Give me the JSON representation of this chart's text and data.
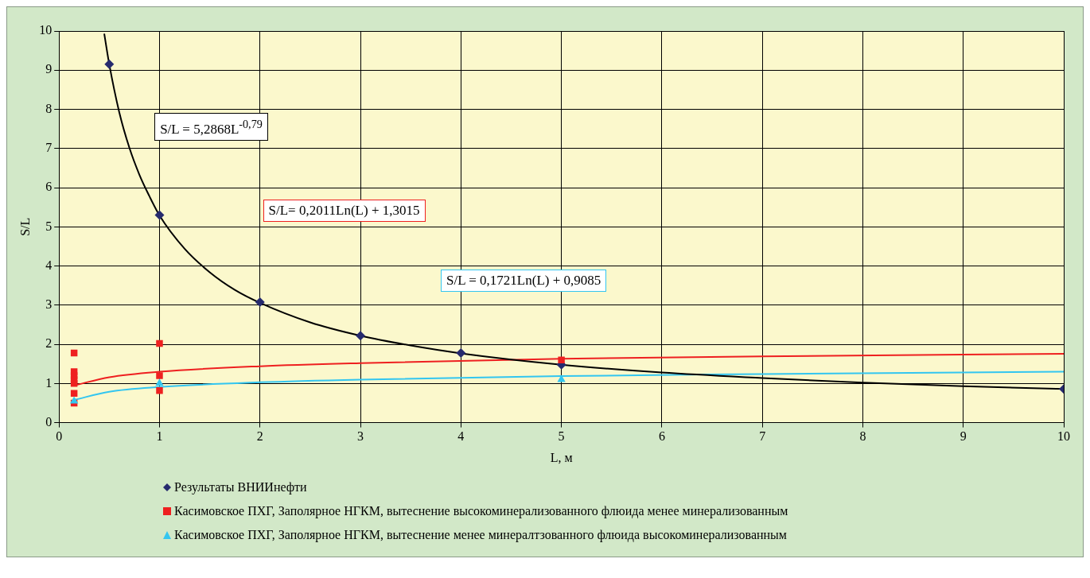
{
  "chart_data": {
    "type": "scatter",
    "xlabel": "L, м",
    "ylabel": "S/L",
    "xlim": [
      0,
      10
    ],
    "ylim": [
      0,
      10
    ],
    "xticks": [
      0,
      1,
      2,
      3,
      4,
      5,
      6,
      7,
      8,
      9,
      10
    ],
    "yticks": [
      0,
      1,
      2,
      3,
      4,
      5,
      6,
      7,
      8,
      9,
      10
    ],
    "grid": true,
    "legend": "bottom",
    "series": [
      {
        "name": "Результаты ВНИИнефти",
        "marker": "diamond",
        "color": "#262a6e",
        "x": [
          0.5,
          1,
          2,
          3,
          4,
          5,
          10
        ],
        "values": [
          9.15,
          5.3,
          3.08,
          2.22,
          1.78,
          1.48,
          0.86
        ]
      },
      {
        "name": "Касимовское ПХГ, Заполярное НГКМ, вытеснение высокоминерализованного флюида менее минерализованным",
        "marker": "square",
        "color": "#ee2020",
        "x": [
          0.15,
          0.15,
          0.15,
          0.15,
          0.15,
          0.15,
          0.15,
          1,
          1,
          1,
          5
        ],
        "values": [
          1.78,
          1.3,
          1.2,
          1.1,
          1.0,
          0.75,
          0.5,
          2.02,
          1.2,
          0.82,
          1.6
        ]
      },
      {
        "name": "Касимовское ПХГ, Заполярное НГКМ, вытеснение менее минералтзованного флюида высокоминерализованным",
        "marker": "triangle",
        "color": "#33c6f0",
        "x": [
          0.15,
          1,
          5
        ],
        "values": [
          0.55,
          1.0,
          1.1
        ]
      },
      {
        "type": "line",
        "marker": "none",
        "color": "#000000",
        "x": [
          0.45,
          0.5,
          0.6,
          0.7,
          0.8,
          0.9,
          1,
          1.25,
          1.5,
          1.75,
          2,
          2.5,
          3,
          3.5,
          4,
          5,
          6,
          7,
          8,
          9,
          10
        ],
        "values": [
          9.93,
          9.15,
          7.92,
          7.02,
          6.33,
          5.78,
          5.29,
          4.44,
          3.84,
          3.39,
          3.06,
          2.56,
          2.22,
          1.97,
          1.77,
          1.48,
          1.28,
          1.14,
          1.02,
          0.93,
          0.86
        ]
      },
      {
        "type": "line",
        "marker": "none",
        "color": "#ee2020",
        "x": [
          0.15,
          0.5,
          1,
          2,
          3,
          5,
          7,
          10
        ],
        "values": [
          0.95,
          1.16,
          1.3,
          1.44,
          1.52,
          1.63,
          1.69,
          1.76
        ]
      },
      {
        "type": "line",
        "marker": "none",
        "color": "#33c6f0",
        "x": [
          0.15,
          0.5,
          1,
          2,
          3,
          5,
          7,
          10
        ],
        "values": [
          0.58,
          0.79,
          0.91,
          1.03,
          1.1,
          1.19,
          1.24,
          1.3
        ]
      }
    ],
    "annotations": [
      "S/L = 5,2868L$^{-0,79}$",
      "S/L= 0,2011Ln(L) + 1,3015",
      "S/L = 0,1721Ln(L) + 0,9085"
    ]
  }
}
